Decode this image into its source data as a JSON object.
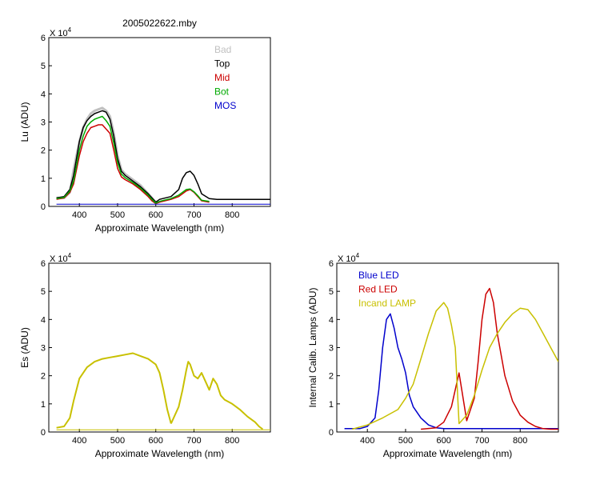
{
  "chart_data": [
    {
      "id": "lu",
      "type": "line",
      "title": "2005022622.mby",
      "xlabel": "Approximate Wavelength (nm)",
      "ylabel": "Lu (ADU)",
      "multiplier_base": "X 10",
      "multiplier_exp": "4",
      "xlim": [
        320,
        900
      ],
      "ylim": [
        0,
        6
      ],
      "xticks": [
        400,
        500,
        600,
        700,
        800
      ],
      "yticks": [
        0,
        1,
        2,
        3,
        4,
        5,
        6
      ],
      "legend_position": "top-right",
      "series": [
        {
          "name": "Bad",
          "color": "#c0c0c0",
          "width": 3,
          "x": [
            340,
            360,
            375,
            385,
            400,
            410,
            420,
            430,
            440,
            450,
            460,
            470,
            480,
            490,
            500,
            510,
            520,
            540,
            560,
            580,
            590,
            600
          ],
          "y": [
            0.3,
            0.3,
            0.5,
            1.3,
            2.3,
            2.8,
            3.1,
            3.3,
            3.4,
            3.45,
            3.5,
            3.4,
            3.2,
            2.6,
            1.8,
            1.3,
            1.15,
            0.95,
            0.75,
            0.45,
            0.3,
            0.15
          ]
        },
        {
          "name": "Top",
          "color": "#000000",
          "width": 1.5,
          "x": [
            340,
            360,
            375,
            385,
            400,
            410,
            420,
            430,
            440,
            450,
            460,
            470,
            480,
            490,
            500,
            510,
            520,
            540,
            560,
            580,
            590,
            600,
            610,
            640,
            660,
            670,
            680,
            690,
            700,
            710,
            720,
            740,
            760,
            800,
            850,
            900
          ],
          "y": [
            0.3,
            0.35,
            0.6,
            1.1,
            2.3,
            2.8,
            3.05,
            3.2,
            3.3,
            3.35,
            3.4,
            3.35,
            3.1,
            2.5,
            1.7,
            1.25,
            1.1,
            0.9,
            0.7,
            0.45,
            0.3,
            0.15,
            0.25,
            0.35,
            0.6,
            1.0,
            1.2,
            1.25,
            1.1,
            0.8,
            0.45,
            0.28,
            0.25,
            0.25,
            0.25,
            0.25
          ]
        },
        {
          "name": "Mid",
          "color": "#cc0000",
          "width": 1.5,
          "x": [
            340,
            360,
            375,
            385,
            400,
            410,
            420,
            430,
            440,
            450,
            460,
            470,
            480,
            490,
            500,
            510,
            520,
            540,
            560,
            580,
            590,
            600,
            610,
            640,
            660,
            670,
            680,
            690,
            700,
            710,
            720,
            740
          ],
          "y": [
            0.25,
            0.3,
            0.5,
            0.8,
            1.8,
            2.3,
            2.6,
            2.8,
            2.85,
            2.9,
            2.9,
            2.75,
            2.6,
            2.0,
            1.35,
            1.05,
            0.95,
            0.8,
            0.6,
            0.35,
            0.2,
            0.1,
            0.15,
            0.25,
            0.35,
            0.45,
            0.55,
            0.6,
            0.5,
            0.35,
            0.2,
            0.15
          ]
        },
        {
          "name": "Bot",
          "color": "#00aa00",
          "width": 1.5,
          "x": [
            340,
            360,
            375,
            385,
            400,
            410,
            420,
            430,
            440,
            450,
            460,
            470,
            480,
            490,
            500,
            510,
            520,
            540,
            560,
            580,
            590,
            600,
            610,
            640,
            660,
            670,
            680,
            690,
            700,
            710,
            720,
            740
          ],
          "y": [
            0.28,
            0.32,
            0.55,
            0.9,
            2.0,
            2.5,
            2.85,
            3.0,
            3.1,
            3.15,
            3.2,
            3.05,
            2.85,
            2.25,
            1.55,
            1.15,
            1.02,
            0.85,
            0.65,
            0.4,
            0.25,
            0.12,
            0.18,
            0.28,
            0.4,
            0.5,
            0.6,
            0.62,
            0.52,
            0.38,
            0.22,
            0.18
          ]
        },
        {
          "name": "MOS",
          "color": "#0000cc",
          "width": 1,
          "x": [
            340,
            900
          ],
          "y": [
            0.08,
            0.08
          ]
        }
      ]
    },
    {
      "id": "es",
      "type": "line",
      "title": "",
      "xlabel": "Approximate Wavelength (nm)",
      "ylabel": "Es (ADU)",
      "multiplier_base": "X 10",
      "multiplier_exp": "4",
      "xlim": [
        320,
        900
      ],
      "ylim": [
        0,
        6
      ],
      "xticks": [
        400,
        500,
        600,
        700,
        800
      ],
      "yticks": [
        0,
        1,
        2,
        3,
        4,
        5,
        6
      ],
      "series": [
        {
          "name": "",
          "color": "#c8c000",
          "width": 2,
          "x": [
            340,
            360,
            375,
            385,
            400,
            420,
            440,
            460,
            480,
            500,
            520,
            540,
            560,
            580,
            600,
            610,
            620,
            630,
            640
          ],
          "y": [
            0.15,
            0.2,
            0.5,
            1.1,
            1.9,
            2.3,
            2.5,
            2.6,
            2.65,
            2.7,
            2.75,
            2.8,
            2.7,
            2.6,
            2.4,
            2.1,
            1.5,
            0.8,
            0.3
          ]
        },
        {
          "name": "",
          "color": "#c8c000",
          "width": 2,
          "x": [
            640,
            660,
            670,
            680,
            685,
            690,
            700,
            710,
            720,
            730,
            740,
            750,
            760,
            770,
            780,
            800,
            820,
            840,
            860,
            870,
            880
          ],
          "y": [
            0.3,
            0.9,
            1.5,
            2.2,
            2.5,
            2.4,
            2.0,
            1.9,
            2.1,
            1.8,
            1.5,
            1.9,
            1.7,
            1.3,
            1.15,
            1.0,
            0.8,
            0.55,
            0.35,
            0.2,
            0.1
          ]
        },
        {
          "name": "",
          "color": "#c8c000",
          "width": 1,
          "x": [
            340,
            900
          ],
          "y": [
            0.08,
            0.08
          ]
        }
      ]
    },
    {
      "id": "lamps",
      "type": "line",
      "title": "",
      "xlabel": "Approximate Wavelength (nm)",
      "ylabel": "Internal Calib. Lamps (ADU)",
      "multiplier_base": "X 10",
      "multiplier_exp": "4",
      "xlim": [
        320,
        900
      ],
      "ylim": [
        0,
        6
      ],
      "xticks": [
        400,
        500,
        600,
        700,
        800
      ],
      "yticks": [
        0,
        1,
        2,
        3,
        4,
        5,
        6
      ],
      "legend_position": "top-left",
      "series": [
        {
          "name": "Blue LED",
          "color": "#0000cc",
          "width": 1.5,
          "x": [
            340,
            380,
            400,
            420,
            430,
            440,
            450,
            460,
            470,
            480,
            490,
            500,
            510,
            520,
            540,
            560,
            580,
            600,
            640,
            700,
            900
          ],
          "y": [
            0.12,
            0.12,
            0.2,
            0.5,
            1.5,
            3.0,
            4.0,
            4.2,
            3.7,
            3.0,
            2.6,
            2.1,
            1.3,
            0.9,
            0.5,
            0.25,
            0.15,
            0.12,
            0.12,
            0.12,
            0.12
          ]
        },
        {
          "name": "Red LED",
          "color": "#cc0000",
          "width": 1.5,
          "x": [
            540,
            580,
            600,
            620,
            640,
            660,
            680,
            690,
            700,
            710,
            720,
            730,
            740,
            760,
            780,
            800,
            820,
            840,
            860,
            880,
            900
          ],
          "y": [
            0.1,
            0.15,
            0.35,
            0.9,
            2.1,
            0.4,
            1.2,
            2.5,
            4.0,
            4.9,
            5.1,
            4.6,
            3.5,
            2.0,
            1.1,
            0.6,
            0.35,
            0.2,
            0.12,
            0.1,
            0.1
          ]
        },
        {
          "name": "Incand LAMP",
          "color": "#c8c000",
          "width": 1.5,
          "x": [
            360,
            400,
            440,
            480,
            500,
            520,
            540,
            560,
            580,
            600,
            610,
            620,
            630,
            640,
            660,
            680,
            700,
            720,
            740,
            760,
            780,
            800,
            820,
            840,
            860,
            880,
            900
          ],
          "y": [
            0.1,
            0.25,
            0.5,
            0.8,
            1.2,
            1.7,
            2.6,
            3.5,
            4.3,
            4.6,
            4.4,
            3.8,
            3.0,
            0.3,
            0.6,
            1.3,
            2.2,
            3.0,
            3.5,
            3.9,
            4.2,
            4.4,
            4.35,
            4.0,
            3.5,
            3.0,
            2.5
          ]
        }
      ]
    }
  ]
}
